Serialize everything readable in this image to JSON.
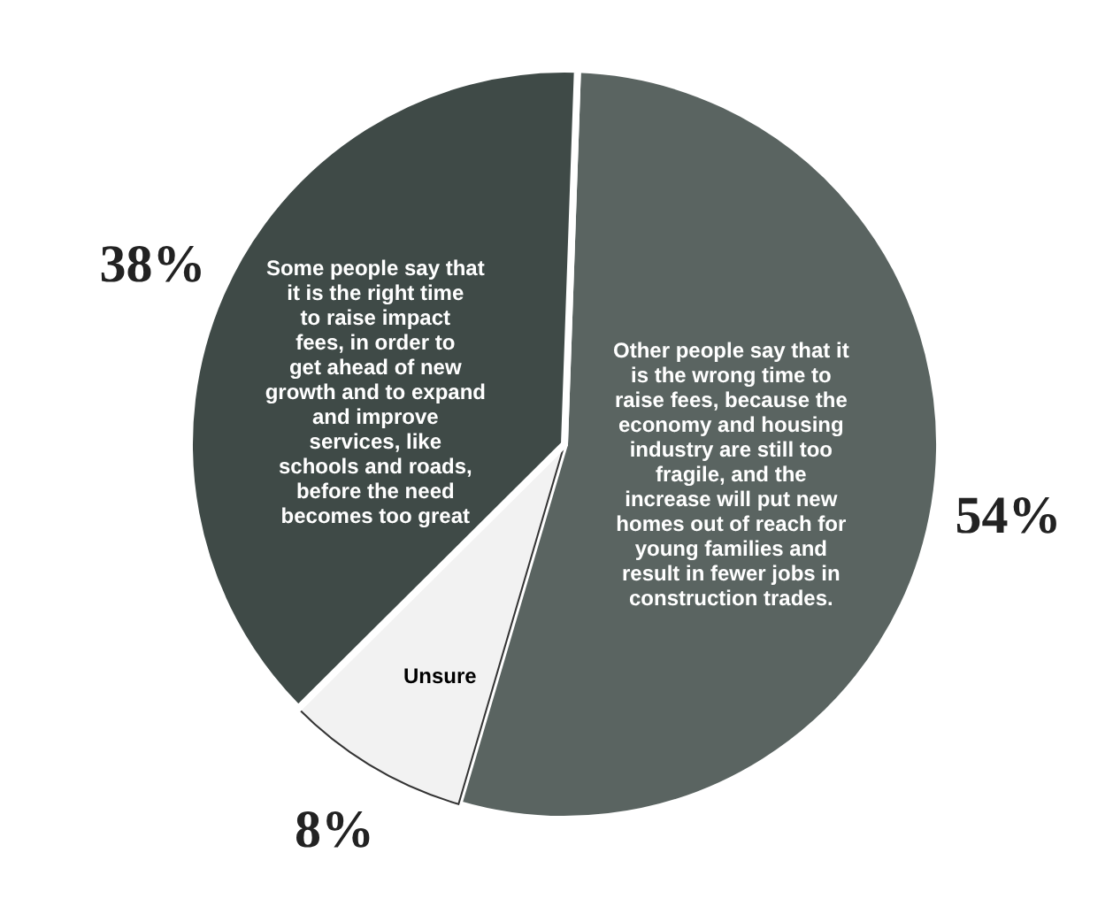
{
  "chart_data": {
    "type": "pie",
    "categories": [
      "Other people say that it is the wrong time to raise fees, because the economy and housing industry are still too fragile, and the increase will put new homes out of reach for young families and result in fewer jobs in construction trades.",
      "Unsure",
      "Some people say that it is the right time to raise impact fees, in order to get ahead of new growth and to expand and improve services, like schools and roads, before the need becomes too great"
    ],
    "values": [
      54,
      8,
      38
    ],
    "colors": [
      "#5a6461",
      "#f2f2f2",
      "#3f4a47"
    ],
    "value_labels": [
      "54%",
      "8%",
      "38%"
    ]
  }
}
